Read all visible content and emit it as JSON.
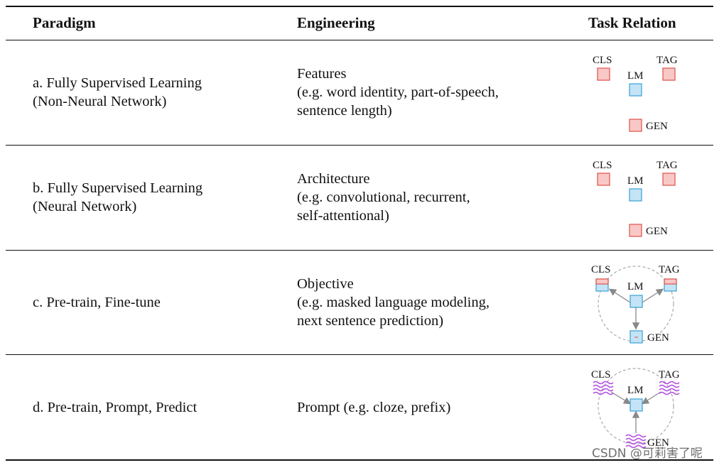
{
  "header": {
    "paradigm": "Paradigm",
    "engineering": "Engineering",
    "task_relation": "Task Relation"
  },
  "rows": [
    {
      "paradigm": [
        "a. Fully Supervised Learning",
        "(Non-Neural Network)"
      ],
      "engineering": [
        "Features",
        "(e.g. word identity, part-of-speech,",
        "sentence length)"
      ],
      "diagram": {
        "cls": "CLS",
        "tag": "TAG",
        "lm": "LM",
        "gen": "GEN"
      }
    },
    {
      "paradigm": [
        "b. Fully Supervised Learning",
        "(Neural Network)"
      ],
      "engineering": [
        "Architecture",
        "(e.g. convolutional, recurrent,",
        "self-attentional)"
      ],
      "diagram": {
        "cls": "CLS",
        "tag": "TAG",
        "lm": "LM",
        "gen": "GEN"
      }
    },
    {
      "paradigm": [
        "c. Pre-train, Fine-tune"
      ],
      "engineering": [
        "Objective",
        "(e.g. masked language modeling,",
        "next sentence prediction)"
      ],
      "diagram": {
        "cls": "CLS",
        "tag": "TAG",
        "lm": "LM",
        "gen": "GEN"
      }
    },
    {
      "paradigm": [
        "d. Pre-train, Prompt, Predict"
      ],
      "engineering": [
        "Prompt (e.g. cloze, prefix)"
      ],
      "diagram": {
        "cls": "CLS",
        "tag": "TAG",
        "lm": "LM",
        "gen": "GEN"
      }
    }
  ],
  "watermark": "CSDN @可莉害了呢",
  "colors": {
    "task_fill": "#f8c8c6",
    "task_stroke": "#e0504a",
    "lm_fill": "#c4e4f6",
    "lm_stroke": "#3aa0d6",
    "prompt_wave": "#b44de0",
    "arrow": "#888888",
    "circle": "#999999"
  }
}
